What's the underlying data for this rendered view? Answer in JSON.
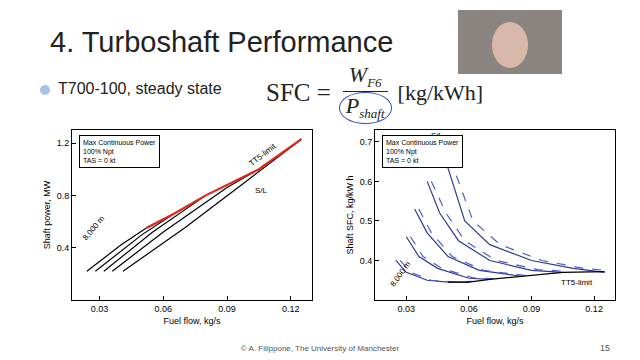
{
  "slide": {
    "title": "4. Turboshaft Performance",
    "bullet": "T700-100, steady state",
    "formula": {
      "lhs": "SFC =",
      "numerator": "W",
      "numerator_sub": "F6",
      "denominator": "P",
      "denominator_sub": "shaft",
      "units": "[kg/kWh]"
    },
    "footer": "© A. Filippone, The University of Manchester",
    "page": 15
  },
  "chart_data": [
    {
      "type": "line",
      "x_label": "Fuel flow, kg/s",
      "y_label": "Shaft power, MW",
      "note": [
        "Max Continuous Power",
        "100% Npt",
        "TAS = 0 kt"
      ],
      "xlim": [
        0.017,
        0.13
      ],
      "xticks": [
        0.03,
        0.06,
        0.09,
        0.12
      ],
      "ylim": [
        0,
        1.3
      ],
      "yticks": [
        0.4,
        0.8,
        1.2
      ],
      "grid": false,
      "series": [
        {
          "name": "S/L",
          "color": "#000000",
          "line_style": "solid",
          "x": [
            0.041,
            0.07,
            0.1,
            0.125
          ],
          "values": [
            0.22,
            0.55,
            0.92,
            1.23
          ]
        },
        {
          "color": "#000000",
          "line_style": "solid",
          "x": [
            0.036,
            0.06,
            0.09,
            0.105
          ],
          "values": [
            0.22,
            0.52,
            0.86,
            1.0
          ]
        },
        {
          "color": "#000000",
          "line_style": "solid",
          "x": [
            0.032,
            0.055,
            0.08
          ],
          "values": [
            0.22,
            0.52,
            0.8
          ]
        },
        {
          "color": "#000000",
          "line_style": "solid",
          "x": [
            0.028,
            0.05,
            0.065
          ],
          "values": [
            0.22,
            0.5,
            0.66
          ]
        },
        {
          "name": "8,000 m",
          "color": "#000000",
          "line_style": "solid",
          "x": [
            0.024,
            0.04,
            0.052
          ],
          "values": [
            0.22,
            0.42,
            0.55
          ]
        },
        {
          "name": "TT5-limit",
          "color": "#e0261a",
          "line_style": "solid",
          "x": [
            0.052,
            0.065,
            0.08,
            0.105,
            0.125
          ],
          "values": [
            0.55,
            0.66,
            0.8,
            1.0,
            1.23
          ]
        }
      ],
      "annotations": [
        {
          "text": "8,000 m",
          "x": 0.027,
          "y": 0.55
        },
        {
          "text": "TT5-limit",
          "x": 0.107,
          "y": 1.11
        },
        {
          "text": "S/L",
          "x": 0.106,
          "y": 0.84
        }
      ]
    },
    {
      "type": "line",
      "x_label": "Fuel flow, kg/s",
      "y_label": "Shaft SFC, kg/kW h",
      "note": [
        "Max Continuous Power",
        "100% Npt",
        "TAS = 0 kt"
      ],
      "xlim": [
        0.015,
        0.13
      ],
      "xticks": [
        0.03,
        0.06,
        0.09,
        0.12
      ],
      "ylim": [
        0.3,
        0.73
      ],
      "yticks": [
        0.4,
        0.5,
        0.6,
        0.7
      ],
      "grid": false,
      "series": [
        {
          "name": "S/L",
          "color": "#303a8c",
          "line_style": "solid",
          "x": [
            0.046,
            0.052,
            0.058,
            0.07,
            0.09,
            0.11,
            0.125
          ],
          "values": [
            0.7,
            0.6,
            0.5,
            0.44,
            0.4,
            0.38,
            0.37
          ]
        },
        {
          "color": "#4a5fd0",
          "line_style": "dashed",
          "x": [
            0.048,
            0.055,
            0.062,
            0.075,
            0.095,
            0.115,
            0.125
          ],
          "values": [
            0.7,
            0.6,
            0.5,
            0.44,
            0.4,
            0.38,
            0.375
          ]
        },
        {
          "color": "#303a8c",
          "line_style": "solid",
          "x": [
            0.04,
            0.046,
            0.055,
            0.07,
            0.09,
            0.105
          ],
          "values": [
            0.6,
            0.52,
            0.45,
            0.4,
            0.375,
            0.37
          ]
        },
        {
          "color": "#4a5fd0",
          "line_style": "dashed",
          "x": [
            0.042,
            0.049,
            0.058,
            0.073,
            0.093,
            0.108
          ],
          "values": [
            0.6,
            0.52,
            0.45,
            0.4,
            0.377,
            0.372
          ]
        },
        {
          "color": "#303a8c",
          "line_style": "solid",
          "x": [
            0.034,
            0.04,
            0.05,
            0.065,
            0.085
          ],
          "values": [
            0.53,
            0.47,
            0.41,
            0.375,
            0.36
          ]
        },
        {
          "color": "#4a5fd0",
          "line_style": "dashed",
          "x": [
            0.036,
            0.042,
            0.052,
            0.067,
            0.087
          ],
          "values": [
            0.53,
            0.47,
            0.41,
            0.375,
            0.362
          ]
        },
        {
          "color": "#303a8c",
          "line_style": "solid",
          "x": [
            0.03,
            0.036,
            0.045,
            0.06,
            0.07
          ],
          "values": [
            0.46,
            0.41,
            0.38,
            0.355,
            0.352
          ]
        },
        {
          "color": "#4a5fd0",
          "line_style": "dashed",
          "x": [
            0.032,
            0.038,
            0.047,
            0.062,
            0.072
          ],
          "values": [
            0.46,
            0.41,
            0.38,
            0.356,
            0.354
          ]
        },
        {
          "name": "8,000 m",
          "color": "#303a8c",
          "line_style": "solid",
          "x": [
            0.025,
            0.03,
            0.04,
            0.05,
            0.06
          ],
          "values": [
            0.4,
            0.37,
            0.35,
            0.345,
            0.345
          ]
        },
        {
          "color": "#4a5fd0",
          "line_style": "dashed",
          "x": [
            0.027,
            0.032,
            0.042,
            0.052,
            0.062
          ],
          "values": [
            0.4,
            0.37,
            0.35,
            0.346,
            0.347
          ]
        },
        {
          "name": "TT5-limit",
          "color": "#000000",
          "line_style": "solid",
          "x": [
            0.05,
            0.06,
            0.07,
            0.085,
            0.105,
            0.125
          ],
          "values": [
            0.345,
            0.345,
            0.352,
            0.36,
            0.37,
            0.372
          ]
        }
      ],
      "annotations": [
        {
          "text": "S/L",
          "x": 0.045,
          "y": 0.715
        },
        {
          "text": "8,000 m",
          "x": 0.027,
          "y": 0.365
        },
        {
          "text": "TT5-limit",
          "x": 0.112,
          "y": 0.345
        }
      ]
    }
  ]
}
